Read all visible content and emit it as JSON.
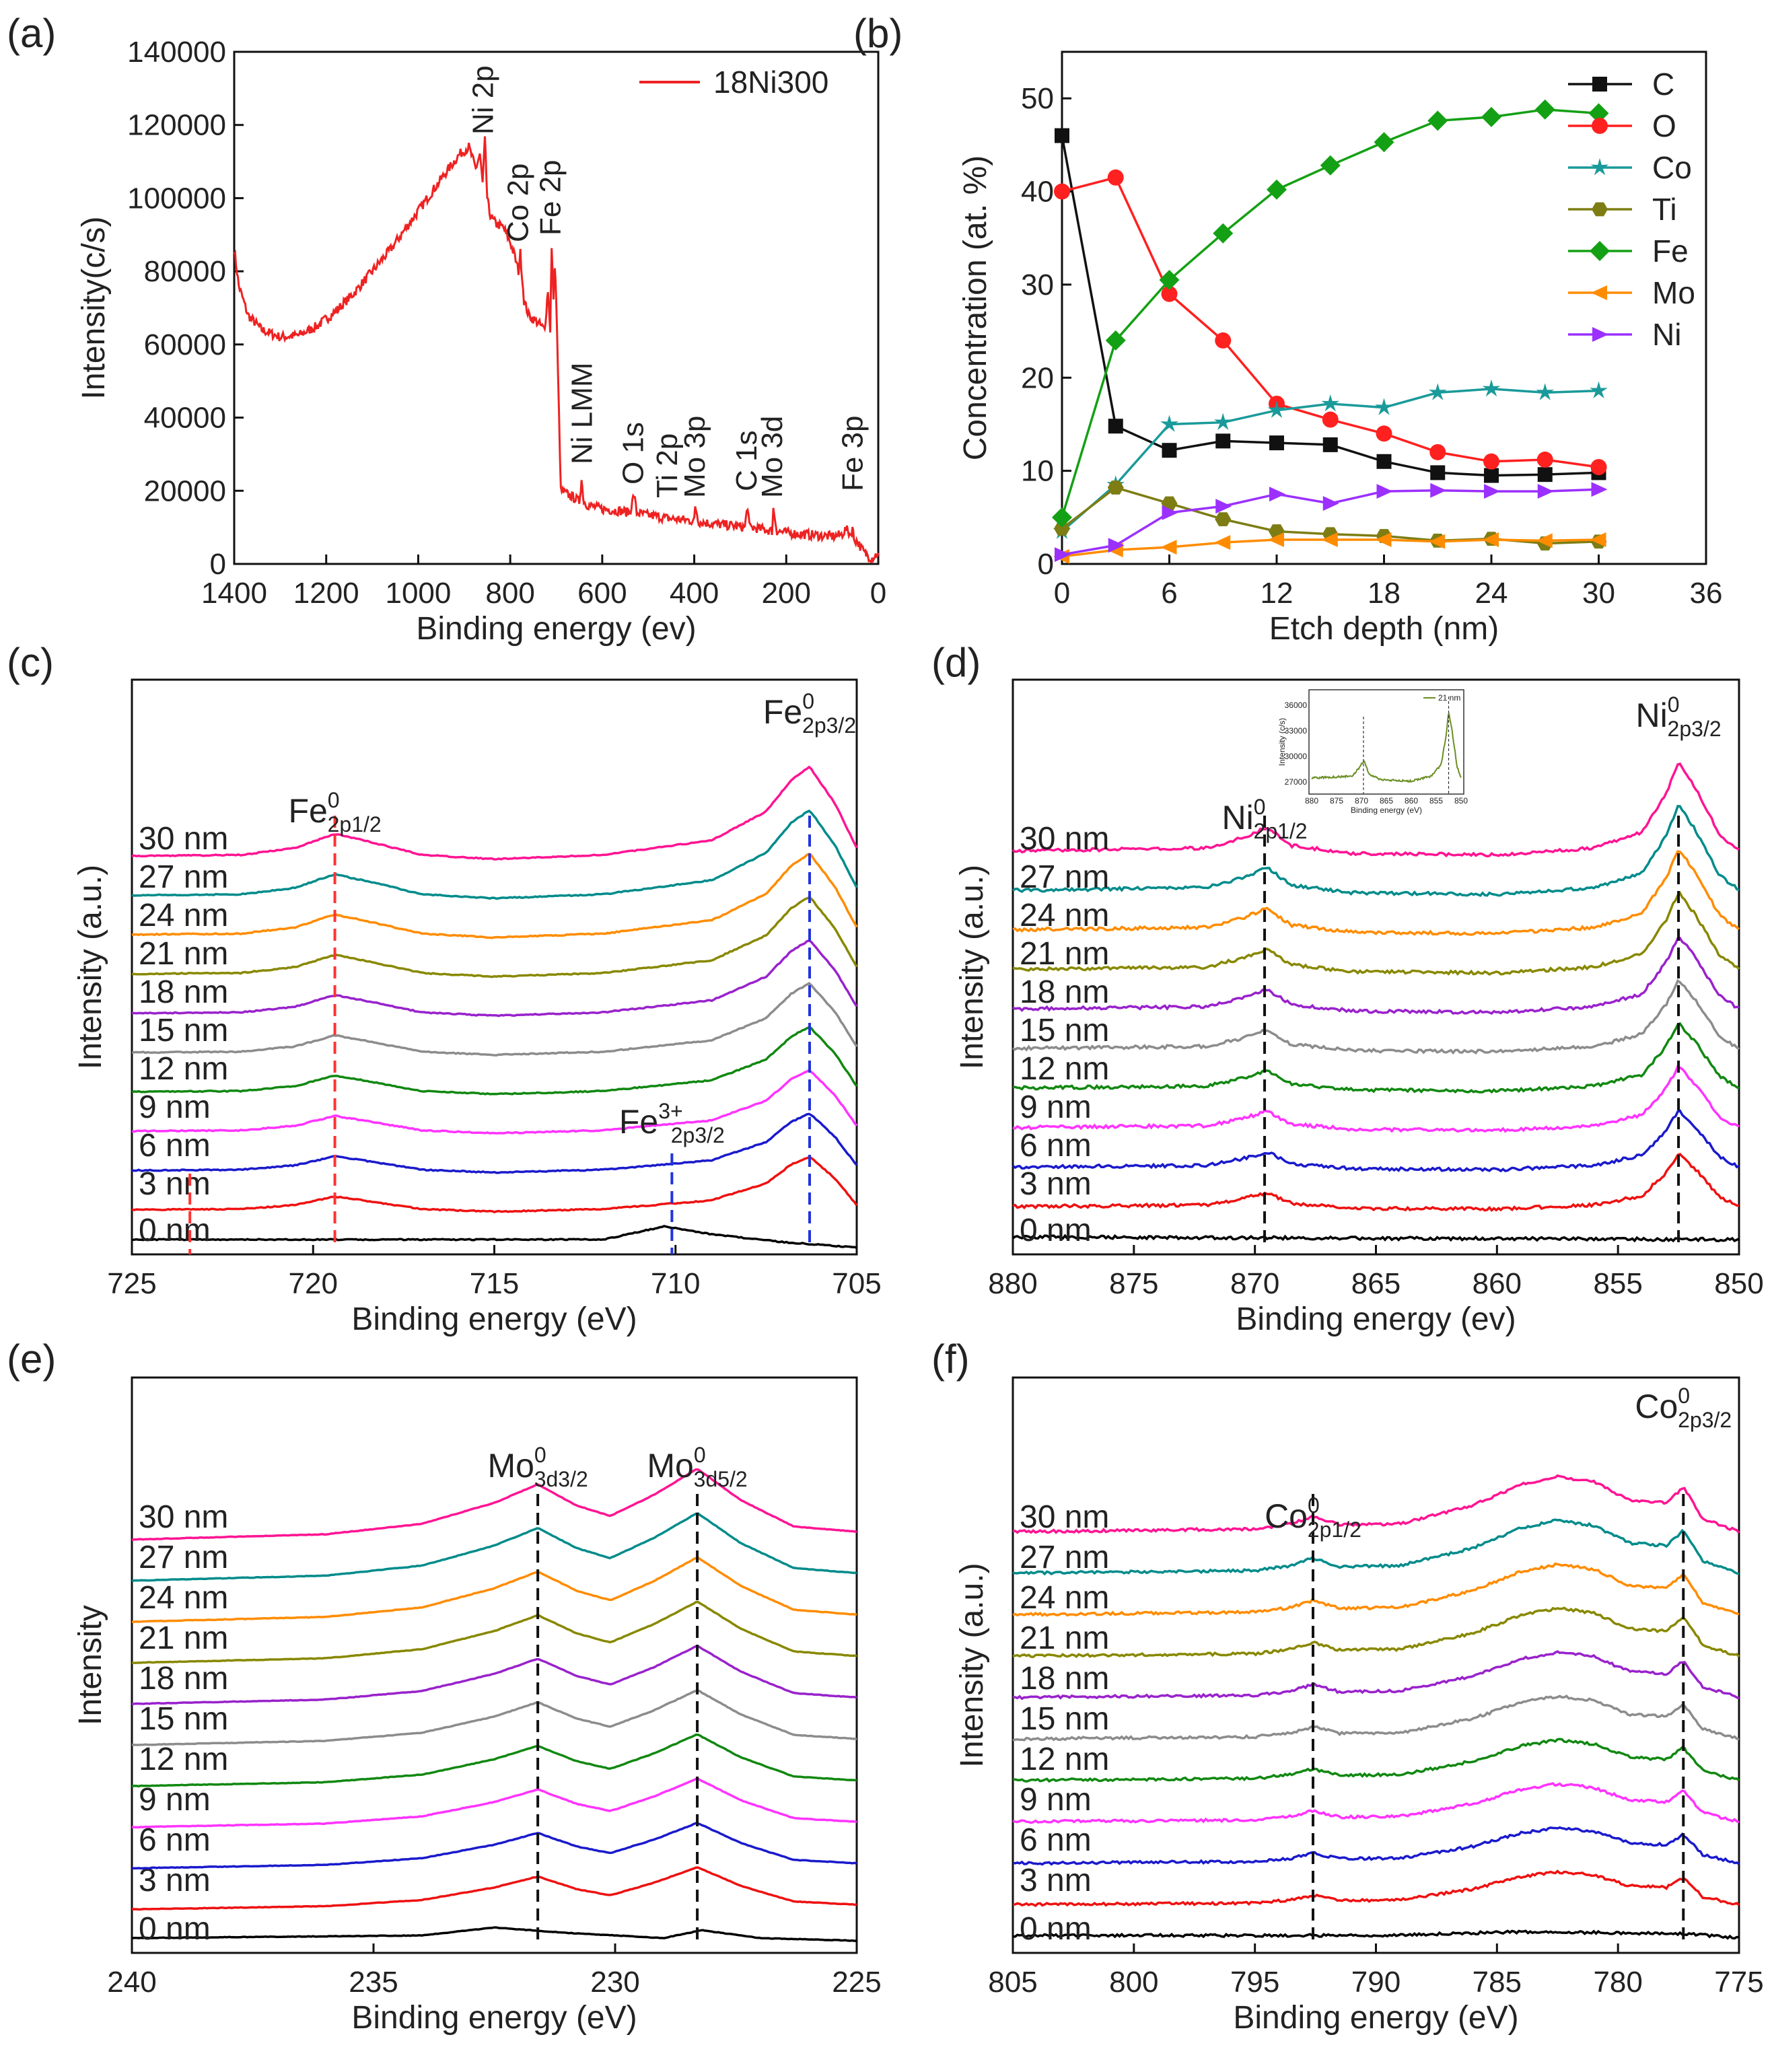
{
  "chart_data": [
    {
      "id": "a",
      "panel": "(a)",
      "type": "line",
      "xlabel": "Binding energy (ev)",
      "ylabel": "Intensity(c/s)",
      "xlim": [
        1400,
        0
      ],
      "ylim": [
        0,
        140000
      ],
      "xticks": [
        1400,
        1200,
        1000,
        800,
        600,
        400,
        200,
        0
      ],
      "yticks": [
        0,
        20000,
        40000,
        60000,
        80000,
        100000,
        120000,
        140000
      ],
      "legend": "18Ni300",
      "line_color": "#ee2222",
      "x": [
        1400,
        1390,
        1370,
        1340,
        1300,
        1260,
        1220,
        1180,
        1140,
        1100,
        1060,
        1020,
        980,
        940,
        910,
        890,
        875,
        866,
        860,
        855,
        850,
        845,
        838,
        830,
        815,
        800,
        790,
        782,
        778,
        770,
        760,
        740,
        725,
        718,
        713,
        710,
        706,
        703,
        700,
        690,
        675,
        660,
        650,
        645,
        640,
        630,
        600,
        560,
        540,
        531,
        525,
        510,
        480,
        460,
        420,
        400,
        398,
        390,
        360,
        320,
        290,
        284,
        280,
        250,
        231,
        228,
        220,
        200,
        150,
        100,
        80,
        70,
        60,
        56,
        53,
        45,
        30,
        15,
        0
      ],
      "y": [
        86000,
        76000,
        68000,
        64000,
        62000,
        62500,
        65000,
        69000,
        74000,
        80000,
        86000,
        93000,
        100000,
        107000,
        112000,
        114000,
        108000,
        112000,
        104000,
        116000,
        100000,
        96000,
        94000,
        93000,
        92000,
        88000,
        84000,
        80000,
        85000,
        72000,
        68000,
        66000,
        64000,
        75000,
        64000,
        86000,
        73000,
        82000,
        72000,
        20000,
        19000,
        18000,
        17000,
        23000,
        17000,
        16000,
        15000,
        14500,
        14000,
        19000,
        14000,
        13500,
        13000,
        12500,
        12000,
        11800,
        16000,
        11500,
        11000,
        10500,
        10000,
        16000,
        10000,
        9500,
        9000,
        15000,
        9000,
        8500,
        8000,
        7500,
        8000,
        9500,
        8000,
        10000,
        7000,
        6000,
        3000,
        1500,
        3000
      ],
      "annotations": [
        "Ni 2p",
        "Co 2p",
        "Fe 2p",
        "Ni LMM",
        "O 1s",
        "Ti 2p",
        "Mo 3p",
        "C 1s",
        "Mo 3d",
        "Fe 3p"
      ]
    },
    {
      "id": "b",
      "panel": "(b)",
      "type": "line",
      "xlabel": "Etch depth (nm)",
      "ylabel": "Concentration (at. %)",
      "xlim": [
        0,
        36
      ],
      "ylim": [
        0,
        55
      ],
      "xticks": [
        0,
        6,
        12,
        18,
        24,
        30,
        36
      ],
      "yticks": [
        0,
        10,
        20,
        30,
        40,
        50
      ],
      "x": [
        0,
        3,
        6,
        9,
        12,
        15,
        18,
        21,
        24,
        27,
        30
      ],
      "series": [
        {
          "name": "C",
          "color": "#111111",
          "marker": "square",
          "values": [
            46,
            14.8,
            12.2,
            13.2,
            13,
            12.8,
            11,
            9.8,
            9.5,
            9.6,
            9.8
          ]
        },
        {
          "name": "O",
          "color": "#ff2020",
          "marker": "circle",
          "values": [
            40,
            41.5,
            29,
            24,
            17.2,
            15.5,
            14,
            12,
            11,
            11.2,
            10.4
          ]
        },
        {
          "name": "Co",
          "color": "#1a9a9a",
          "marker": "star",
          "values": [
            3.5,
            8.5,
            15,
            15.2,
            16.5,
            17.2,
            16.8,
            18.4,
            18.8,
            18.4,
            18.6
          ]
        },
        {
          "name": "Ti",
          "color": "#7d7d14",
          "marker": "hexagon",
          "values": [
            3.8,
            8.2,
            6.5,
            4.8,
            3.5,
            3.2,
            3,
            2.5,
            2.7,
            2.2,
            2.4
          ]
        },
        {
          "name": "Fe",
          "color": "#14a014",
          "marker": "diamond",
          "values": [
            5,
            24,
            30.5,
            35.5,
            40.2,
            42.8,
            45.3,
            47.6,
            48,
            48.8,
            48.4
          ]
        },
        {
          "name": "Mo",
          "color": "#ff8c00",
          "marker": "triangle-left",
          "values": [
            0.8,
            1.5,
            1.8,
            2.3,
            2.6,
            2.6,
            2.6,
            2.4,
            2.6,
            2.5,
            2.6
          ]
        },
        {
          "name": "Ni",
          "color": "#9b30ff",
          "marker": "triangle-right",
          "values": [
            1,
            2,
            5.5,
            6.2,
            7.5,
            6.5,
            7.8,
            7.9,
            7.8,
            7.8,
            8
          ]
        }
      ]
    },
    {
      "id": "c",
      "panel": "(c)",
      "type": "line",
      "xlabel": "Binding energy (eV)",
      "ylabel": "Intensity (a.u.)",
      "xlim": [
        725,
        705
      ],
      "xticks": [
        725,
        720,
        715,
        710,
        705
      ],
      "depth_labels": [
        "0 nm",
        "3 nm",
        "6 nm",
        "9 nm",
        "12 nm",
        "15 nm",
        "18 nm",
        "21 nm",
        "24 nm",
        "27 nm",
        "30 nm"
      ],
      "trace_colors": [
        "#000000",
        "#ee1111",
        "#1a1acc",
        "#ff33ff",
        "#118811",
        "#8c8c8c",
        "#9922cc",
        "#888800",
        "#ff8c00",
        "#008b8b",
        "#ff1493"
      ],
      "offset_step": 0.62,
      "noise": 0.02,
      "profile": [
        [
          725,
          0.4
        ],
        [
          722,
          0.42
        ],
        [
          720.5,
          0.55
        ],
        [
          719.4,
          0.82
        ],
        [
          718.5,
          0.68
        ],
        [
          717,
          0.42
        ],
        [
          715,
          0.34
        ],
        [
          712,
          0.42
        ],
        [
          709,
          0.7
        ],
        [
          707.5,
          1.25
        ],
        [
          706.8,
          1.85
        ],
        [
          706.3,
          2.1
        ],
        [
          705.6,
          1.4
        ],
        [
          705,
          0.55
        ]
      ],
      "zero_profile": [
        [
          725,
          0.2
        ],
        [
          712,
          0.2
        ],
        [
          710.3,
          0.45
        ],
        [
          709,
          0.3
        ],
        [
          707,
          0.15
        ],
        [
          705,
          0.05
        ]
      ],
      "dashed_lines": [
        {
          "x": 719.4,
          "color": "#ff3333"
        },
        {
          "x": 706.3,
          "color": "#2233dd"
        },
        {
          "x": 710.1,
          "color": "#2233dd"
        },
        {
          "x": 723.4,
          "color": "#ff3333"
        }
      ],
      "peak_labels": [
        {
          "base": "Fe",
          "sup": "0",
          "sub": "2p1/2",
          "x": 719.4
        },
        {
          "base": "Fe",
          "sup": "0",
          "sub": "2p3/2",
          "x": 706.3
        },
        {
          "base": "Fe",
          "sup": "3+",
          "sub": "2p3/2",
          "x": 710.1
        }
      ]
    },
    {
      "id": "d",
      "panel": "(d)",
      "type": "line",
      "xlabel": "Binding energy (ev)",
      "ylabel": "Intensity (a.u.)",
      "xlim": [
        880,
        850
      ],
      "xticks": [
        880,
        875,
        870,
        865,
        860,
        855,
        850
      ],
      "depth_labels": [
        "0 nm",
        "3 nm",
        "6 nm",
        "9 nm",
        "12 nm",
        "15 nm",
        "18 nm",
        "21 nm",
        "24 nm",
        "27 nm",
        "30 nm"
      ],
      "trace_colors": [
        "#000000",
        "#ee1111",
        "#1a1acc",
        "#ff33ff",
        "#118811",
        "#8c8c8c",
        "#9922cc",
        "#888800",
        "#ff8c00",
        "#008b8b",
        "#ff1493"
      ],
      "offset_step": 0.62,
      "noise": 0.06,
      "profile": [
        [
          880,
          0.5
        ],
        [
          872,
          0.55
        ],
        [
          870.5,
          0.75
        ],
        [
          869.5,
          0.95
        ],
        [
          868.5,
          0.6
        ],
        [
          866,
          0.45
        ],
        [
          860,
          0.42
        ],
        [
          856,
          0.55
        ],
        [
          854,
          0.85
        ],
        [
          853,
          1.6
        ],
        [
          852.5,
          2.2
        ],
        [
          851.8,
          1.7
        ],
        [
          850.8,
          0.8
        ],
        [
          850,
          0.5
        ]
      ],
      "zero_profile": [
        [
          880,
          0.25
        ],
        [
          850,
          0.2
        ]
      ],
      "dashed_lines": [
        {
          "x": 869.6,
          "color": "#111111"
        },
        {
          "x": 852.5,
          "color": "#111111"
        }
      ],
      "peak_labels": [
        {
          "base": "Ni",
          "sup": "0",
          "sub": "2p1/2",
          "x": 869.6
        },
        {
          "base": "Ni",
          "sup": "0",
          "sub": "2p3/2",
          "x": 852.5
        }
      ],
      "inset": {
        "legend": "21 nm",
        "xlabel": "Binding energy (eV)",
        "ylabel": "Intensity (c/s)",
        "xticks": [
          "880",
          "875",
          "870",
          "865",
          "860",
          "855",
          "850"
        ],
        "yticks": [
          "27000",
          "30000",
          "33000",
          "36000"
        ]
      }
    },
    {
      "id": "e",
      "panel": "(e)",
      "type": "line",
      "xlabel": "Binding energy (eV)",
      "ylabel": "Intensity",
      "xlim": [
        240,
        225
      ],
      "xticks": [
        240,
        235,
        230,
        225
      ],
      "depth_labels": [
        "0 nm",
        "3 nm",
        "6 nm",
        "9 nm",
        "12 nm",
        "15 nm",
        "18 nm",
        "21 nm",
        "24 nm",
        "27 nm",
        "30 nm"
      ],
      "trace_colors": [
        "#000000",
        "#ee1111",
        "#1a1acc",
        "#ff33ff",
        "#118811",
        "#8c8c8c",
        "#9922cc",
        "#888800",
        "#ff8c00",
        "#008b8b",
        "#ff1493"
      ],
      "offset_step": 0.62,
      "noise": 0.01,
      "profile": [
        [
          240,
          0.3
        ],
        [
          236,
          0.4
        ],
        [
          234,
          0.6
        ],
        [
          232.5,
          1.0
        ],
        [
          231.6,
          1.35
        ],
        [
          230.8,
          0.95
        ],
        [
          230.1,
          0.75
        ],
        [
          229.2,
          1.15
        ],
        [
          228.3,
          1.65
        ],
        [
          227.4,
          1.05
        ],
        [
          226.3,
          0.55
        ],
        [
          225,
          0.45
        ]
      ],
      "zero_profile": [
        [
          240,
          0.2
        ],
        [
          234,
          0.25
        ],
        [
          232.5,
          0.4
        ],
        [
          231,
          0.3
        ],
        [
          229,
          0.2
        ],
        [
          228.2,
          0.35
        ],
        [
          227,
          0.2
        ],
        [
          225,
          0.15
        ]
      ],
      "dashed_lines": [
        {
          "x": 231.6,
          "color": "#111111"
        },
        {
          "x": 228.3,
          "color": "#111111"
        }
      ],
      "peak_labels": [
        {
          "base": "Mo",
          "sup": "0",
          "sub": "3d3/2",
          "x": 231.6
        },
        {
          "base": "Mo",
          "sup": "0",
          "sub": "3d5/2",
          "x": 228.3
        }
      ]
    },
    {
      "id": "f",
      "panel": "(f)",
      "type": "line",
      "xlabel": "Binding energy (eV)",
      "ylabel": "Intensity (a.u.)",
      "xlim": [
        805,
        775
      ],
      "xticks": [
        805,
        800,
        795,
        790,
        785,
        780,
        775
      ],
      "depth_labels": [
        "0 nm",
        "3 nm",
        "6 nm",
        "9 nm",
        "12 nm",
        "15 nm",
        "18 nm",
        "21 nm",
        "24 nm",
        "27 nm",
        "30 nm"
      ],
      "trace_colors": [
        "#000000",
        "#ee1111",
        "#1a1acc",
        "#ff33ff",
        "#118811",
        "#8c8c8c",
        "#9922cc",
        "#888800",
        "#ff8c00",
        "#008b8b",
        "#ff1493"
      ],
      "offset_step": 0.62,
      "noise": 0.05,
      "profile": [
        [
          805,
          0.45
        ],
        [
          795,
          0.5
        ],
        [
          793.5,
          0.6
        ],
        [
          792.6,
          0.75
        ],
        [
          791.5,
          0.58
        ],
        [
          789,
          0.6
        ],
        [
          786,
          0.95
        ],
        [
          784,
          1.35
        ],
        [
          782.5,
          1.5
        ],
        [
          781,
          1.4
        ],
        [
          779.5,
          1.05
        ],
        [
          778,
          1.0
        ],
        [
          777.3,
          1.3
        ],
        [
          776.5,
          0.7
        ],
        [
          775,
          0.45
        ]
      ],
      "zero_profile": [
        [
          805,
          0.25
        ],
        [
          790,
          0.25
        ],
        [
          784,
          0.32
        ],
        [
          780,
          0.3
        ],
        [
          777,
          0.28
        ],
        [
          775,
          0.2
        ]
      ],
      "dashed_lines": [
        {
          "x": 792.6,
          "color": "#111111"
        },
        {
          "x": 777.3,
          "color": "#111111"
        }
      ],
      "peak_labels": [
        {
          "base": "Co",
          "sup": "0",
          "sub": "2p1/2",
          "x": 792.6
        },
        {
          "base": "Co",
          "sup": "0",
          "sub": "2p3/2",
          "x": 777.3
        }
      ]
    }
  ]
}
